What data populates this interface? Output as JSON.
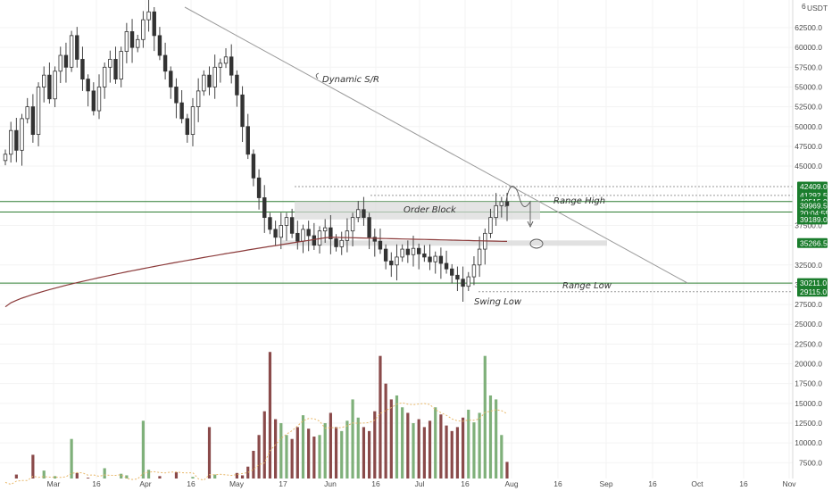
{
  "chart_data": {
    "type": "candlestick",
    "symbol_currency": "USDT",
    "scale_top_label": "6",
    "y_range": [
      5500,
      66000
    ],
    "y_ticks": [
      "62500.0",
      "60000.0",
      "57500.0",
      "55000.0",
      "52500.0",
      "50000.0",
      "47500.0",
      "45000.0",
      "37500.0",
      "32500.0",
      "30000.0",
      "27500.0",
      "25000.0",
      "22500.0",
      "20000.0",
      "17500.0",
      "15000.0",
      "12500.0",
      "10000.0",
      "7500.0"
    ],
    "x_ticks": [
      "Mar",
      "16",
      "Apr",
      "16",
      "May",
      "17",
      "Jun",
      "16",
      "Jul",
      "16",
      "Aug",
      "16",
      "Sep",
      "16",
      "Oct",
      "16",
      "Nov"
    ],
    "price_badges": [
      {
        "label": "42409.0",
        "price": 42409,
        "color": "#1b7d2d"
      },
      {
        "label": "41292.5",
        "price": 41292.5,
        "color": "#1b7d2d"
      },
      {
        "label": "40515.0",
        "price": 40515,
        "color": "#1b7d2d"
      },
      {
        "label": "39969.5",
        "price": 39969.5,
        "color": "#1b7d2d"
      },
      {
        "label": "20:04:55",
        "price": 39000,
        "color": "#1b7d2d"
      },
      {
        "label": "39189.0",
        "price": 38250,
        "color": "#1b7d2d"
      },
      {
        "label": "35266.5",
        "price": 35266.5,
        "color": "#1b7d2d"
      },
      {
        "label": "30211.0",
        "price": 30211,
        "color": "#1b7d2d"
      },
      {
        "label": "29115.0",
        "price": 29115,
        "color": "#1b7d2d"
      }
    ],
    "annotations": {
      "dynamic": "Dynamic S/R",
      "order_block": "Order Block",
      "range_high": "Range High",
      "range_low": "Range Low",
      "swing_low": "Swing Low"
    },
    "levels": {
      "range_high": 40515,
      "range_high_2": 39189,
      "range_low": 30211,
      "swing_low": 29115,
      "level_35266": 35266.5,
      "dotted_42409": 42409,
      "dotted_41292": 41292.5
    },
    "colors": {
      "up": "#7fb07a",
      "down": "#8a4a4a",
      "wick": "#444444",
      "ma": "#8b3a3a",
      "level_line": "#2e7d32",
      "trend_line": "#9a9a9a",
      "badge_green": "#1b7d2d"
    },
    "candles_close": [
      46500,
      49500,
      47000,
      51000,
      52500,
      49000,
      55000,
      56500,
      53500,
      57000,
      59000,
      57500,
      61500,
      58500,
      56000,
      54500,
      52000,
      55000,
      57500,
      58500,
      56000,
      59500,
      62000,
      60000,
      61000,
      63500,
      64500,
      61500,
      59000,
      57000,
      55000,
      53000,
      51000,
      49000,
      52500,
      54500,
      56500,
      55000,
      57500,
      58000,
      58800,
      56500,
      54000,
      50000,
      46500,
      43500,
      41000,
      38500,
      37000,
      36000,
      37500,
      38500,
      36500,
      35500,
      37000,
      36200,
      35000,
      36800,
      37200,
      35800,
      34800,
      35600,
      36800,
      38500,
      39500,
      38500,
      36000,
      35500,
      34500,
      33000,
      32500,
      33500,
      34500,
      33800,
      34600,
      33900,
      33500,
      32900,
      33600,
      32700,
      32000,
      31200,
      30700,
      29800,
      31000,
      32500,
      34500,
      36500,
      38500,
      40000,
      40500,
      40000
    ],
    "volume_values": [
      5000,
      4500,
      6000,
      5500,
      5200,
      8500,
      4800,
      6500,
      5000,
      5800,
      4600,
      5300,
      10500,
      6200,
      4900,
      5600,
      5100,
      4700,
      6800,
      5400,
      4500,
      6100,
      5900,
      4800,
      5500,
      12800,
      6600,
      5200,
      5800,
      4900,
      5400,
      6300,
      5000,
      4600,
      5700,
      5200,
      4800,
      12000,
      6000,
      5300,
      4700,
      5500,
      6200,
      5900,
      7000,
      9000,
      11000,
      14000,
      21500,
      13000,
      12500,
      11000,
      10500,
      12000,
      13500,
      11800,
      10800,
      11000,
      12500,
      13800,
      12000,
      11500,
      12800,
      15500,
      13200,
      12000,
      11500,
      14000,
      21000,
      17500,
      15500,
      16000,
      14500,
      13800,
      12500,
      13000,
      12000,
      12800,
      14500,
      13600,
      12200,
      11500,
      12000,
      13200,
      14200,
      12600,
      13800,
      21000,
      16000,
      15500,
      11000,
      7600
    ]
  }
}
